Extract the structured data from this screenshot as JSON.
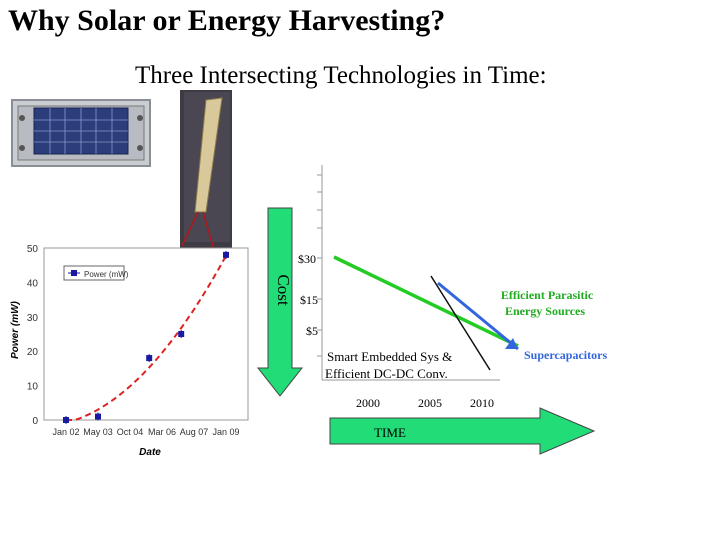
{
  "slide": {
    "title": "Why Solar or Energy Harvesting?",
    "subtitle": "Three Intersecting Technologies in Time:"
  },
  "diagram": {
    "cost_label": "Cost",
    "time_label": "TIME",
    "cost_ticks": [
      "$30",
      "$15",
      "$5"
    ],
    "year_ticks": [
      "2000",
      "2005",
      "2010"
    ],
    "curve_labels": {
      "green_line1": "Efficient Parasitic",
      "green_line2": "Energy Sources",
      "blue": "Supercapacitors",
      "black_line1": "Smart Embedded Sys &",
      "black_line2": "Efficient DC-DC Conv."
    },
    "colors": {
      "green": "#22cc22",
      "blue": "#3366dd",
      "arrow_fill": "#22dd77"
    }
  },
  "chart_data": {
    "type": "scatter",
    "title": "",
    "xlabel": "Date",
    "ylabel": "Power (mW)",
    "x_ticks": [
      "Jan 02",
      "May 03",
      "Oct 04",
      "Mar 06",
      "Aug 07",
      "Jan 09"
    ],
    "ylim": [
      0,
      50
    ],
    "y_ticks": [
      0,
      10,
      20,
      30,
      40,
      50
    ],
    "legend": "Power (mW)",
    "legend_position": "top-left",
    "series": [
      {
        "name": "Power (mW)",
        "x": [
          "Jan 02",
          "May 03",
          "Oct 04 - Mar 06",
          "Mar 06 - Aug 07",
          "Jan 09"
        ],
        "values": [
          0,
          1,
          18,
          25,
          48
        ],
        "x_index": [
          0,
          1,
          2.6,
          3.6,
          5
        ],
        "color": "#1a1aa0"
      }
    ],
    "trend": {
      "style": "dashed",
      "color": "#dd2222",
      "fit": "quadratic"
    }
  }
}
